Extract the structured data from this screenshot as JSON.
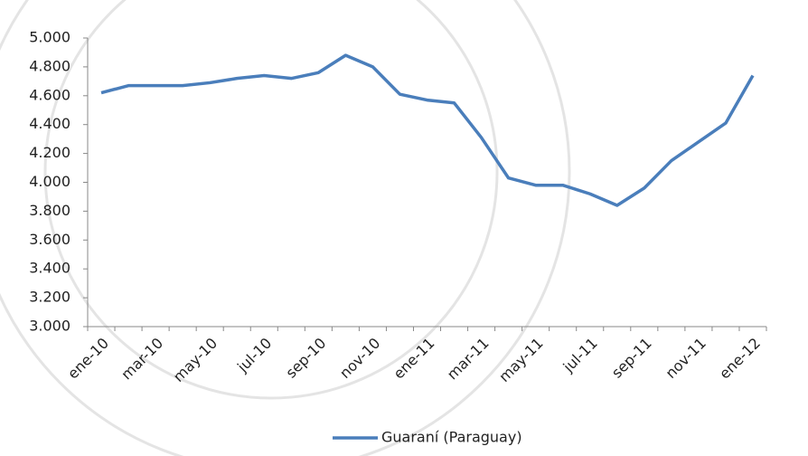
{
  "chart_data": {
    "type": "line",
    "categories": [
      "ene-10",
      null,
      "mar-10",
      null,
      "may-10",
      null,
      "jul-10",
      null,
      "sep-10",
      null,
      "nov-10",
      null,
      "ene-11",
      null,
      "mar-11",
      null,
      "may-11",
      null,
      "jul-11",
      null,
      "sep-11",
      null,
      "nov-11",
      null,
      "ene-12"
    ],
    "series": [
      {
        "name": "Guaraní (Paraguay)",
        "color": "#4a7ebb",
        "values": [
          4620,
          4670,
          4670,
          4670,
          4690,
          4720,
          4740,
          4720,
          4760,
          4880,
          4800,
          4610,
          4570,
          4550,
          4310,
          4030,
          3980,
          3980,
          3920,
          3840,
          3960,
          4150,
          4280,
          4410,
          4740
        ]
      }
    ],
    "ylim": [
      3000,
      5000
    ],
    "yticks": [
      {
        "value": 3000,
        "label": "3.000"
      },
      {
        "value": 3200,
        "label": "3.200"
      },
      {
        "value": 3400,
        "label": "3.400"
      },
      {
        "value": 3600,
        "label": "3.600"
      },
      {
        "value": 3800,
        "label": "3.800"
      },
      {
        "value": 4000,
        "label": "4.000"
      },
      {
        "value": 4200,
        "label": "4.200"
      },
      {
        "value": 4400,
        "label": "4.400"
      },
      {
        "value": 4600,
        "label": "4.600"
      },
      {
        "value": 4800,
        "label": "4.800"
      },
      {
        "value": 5000,
        "label": "5.000"
      }
    ],
    "grid": false,
    "legend": "bottom"
  }
}
